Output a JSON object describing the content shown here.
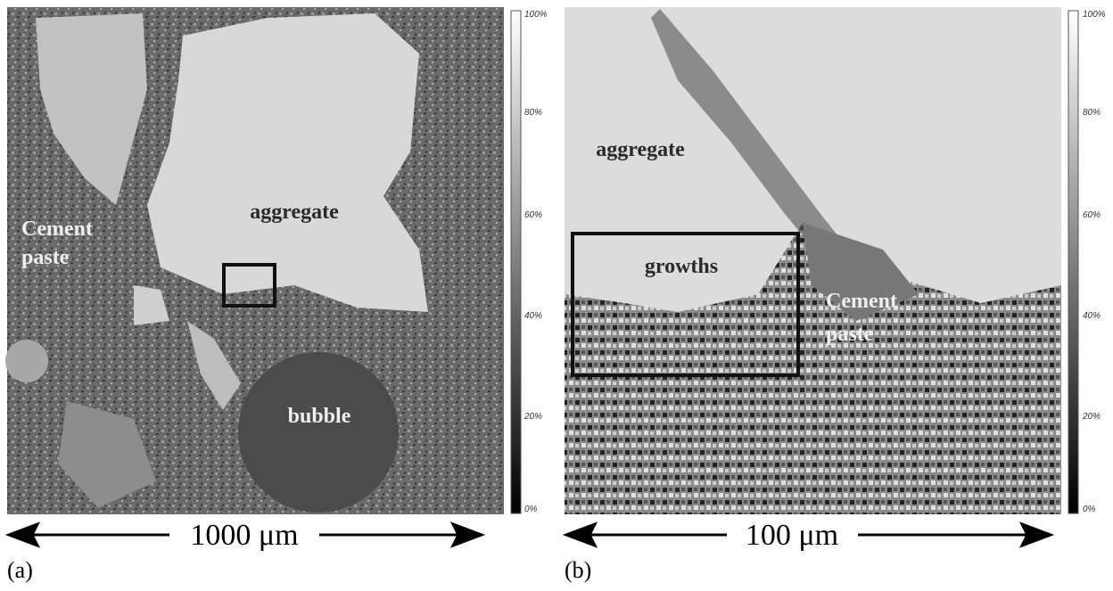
{
  "panels": [
    {
      "label": "(a)",
      "aggregate": "aggregate",
      "cement_paste": [
        "Cement",
        "paste"
      ],
      "bubble": "bubble",
      "scale_bar": "1000 μm",
      "colorbar_ticks": [
        "100%",
        "80%",
        "60%",
        "40%",
        "20%",
        "0%"
      ]
    },
    {
      "label": "(b)",
      "aggregate": "aggregate",
      "growths": "growths",
      "cement_paste": [
        "Cement",
        "paste"
      ],
      "scale_bar": "100 μm",
      "colorbar_ticks": [
        "100%",
        "80%",
        "60%",
        "40%",
        "20%",
        "0%"
      ]
    }
  ]
}
